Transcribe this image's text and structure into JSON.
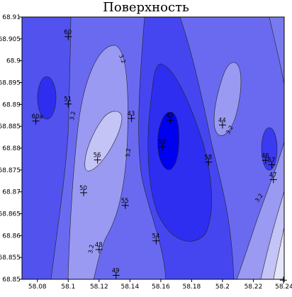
{
  "chart_data": {
    "type": "heatmap",
    "title": "Поверхность",
    "xlabel": "",
    "ylabel": "",
    "xlim": [
      58.07,
      58.24
    ],
    "ylim": [
      68.85,
      68.91
    ],
    "x_ticks": [
      "58.08",
      "58.1",
      "58.12",
      "58.14",
      "58.16",
      "58.18",
      "58.2",
      "58.22",
      "58.24"
    ],
    "y_ticks": [
      "68.85",
      "68.855",
      "68.86",
      "68.865",
      "68.87",
      "68.875",
      "68.88",
      "68.885",
      "68.89",
      "68.895",
      "68.9",
      "68.905",
      "68.91"
    ],
    "contour_labels": [
      "3.2",
      "3.2",
      "3.2",
      "3.2",
      "3.2",
      "3.2"
    ],
    "points": [
      {
        "label": "60",
        "x": 58.1,
        "y": 68.9055
      },
      {
        "label": "51",
        "x": 58.1,
        "y": 68.8901
      },
      {
        "label": "60a",
        "x": 58.079,
        "y": 68.8862
      },
      {
        "label": "43",
        "x": 58.141,
        "y": 68.8868
      },
      {
        "label": "45",
        "x": 58.166,
        "y": 68.8864
      },
      {
        "label": "56",
        "x": 58.119,
        "y": 68.8773
      },
      {
        "label": "44",
        "x": 58.2,
        "y": 68.8853
      },
      {
        "label": "59",
        "x": 58.161,
        "y": 68.8803
      },
      {
        "label": "58",
        "x": 58.191,
        "y": 68.8768
      },
      {
        "label": "46",
        "x": 58.228,
        "y": 68.8772
      },
      {
        "label": "57",
        "x": 58.232,
        "y": 68.8762
      },
      {
        "label": "47",
        "x": 58.233,
        "y": 68.8728
      },
      {
        "label": "50",
        "x": 58.11,
        "y": 68.8698
      },
      {
        "label": "55",
        "x": 58.137,
        "y": 68.8669
      },
      {
        "label": "54",
        "x": 58.157,
        "y": 68.8588
      },
      {
        "label": "48",
        "x": 58.12,
        "y": 68.8568
      },
      {
        "label": "49",
        "x": 58.131,
        "y": 68.8509
      },
      {
        "label": "",
        "x": 58.2395,
        "y": 68.8498
      }
    ],
    "colors": {
      "level_1": "#0000f0",
      "level_2": "#3a3af0",
      "level_3": "#6666f0",
      "level_4": "#9a9af2",
      "level_5": "#c4c4f6",
      "level_6": "#e6e6fa"
    }
  }
}
